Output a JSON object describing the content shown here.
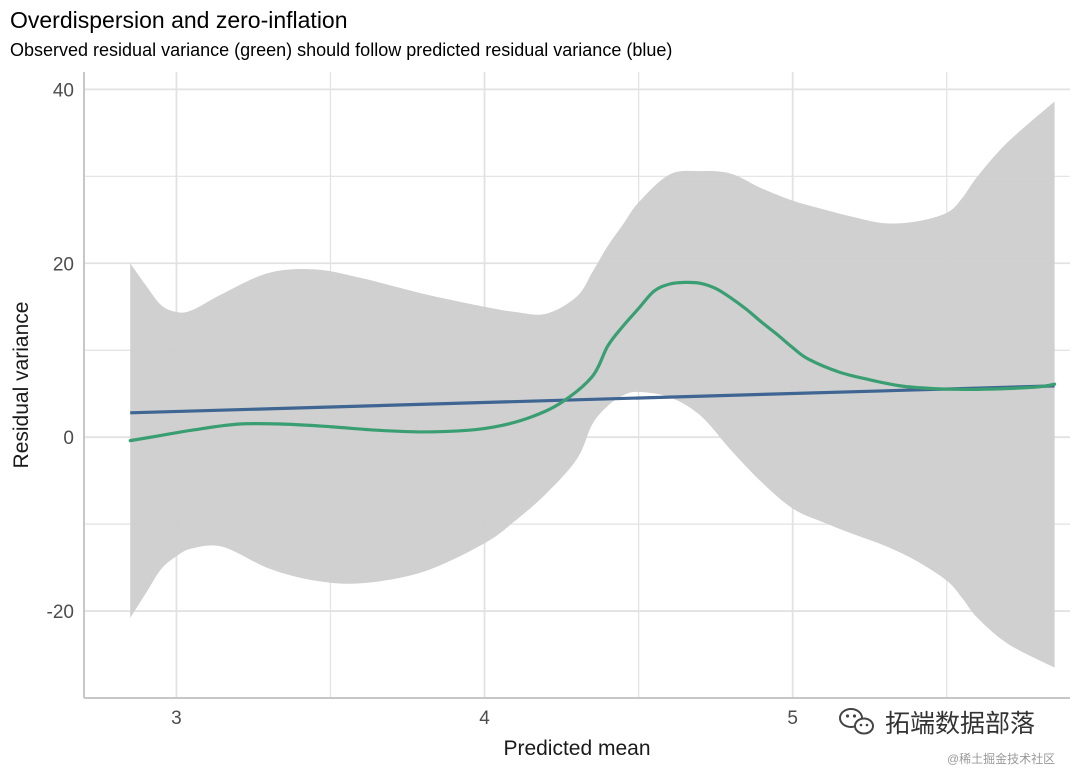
{
  "chart_data": {
    "type": "line",
    "title": "Overdispersion and zero-inflation",
    "subtitle": "Observed residual variance (green) should follow predicted residual variance (blue)",
    "xlabel": "Predicted mean",
    "ylabel": "Residual variance",
    "xlim": [
      2.7,
      5.9
    ],
    "ylim": [
      -30,
      42
    ],
    "xticks": [
      3,
      4,
      5
    ],
    "xtick_labels": [
      "3",
      "4",
      "5"
    ],
    "yticks": [
      -20,
      0,
      20,
      40
    ],
    "ytick_labels": [
      "-20",
      "0",
      "20",
      "40"
    ],
    "x_minor_gridlines": [
      3.5,
      4.5,
      5.5
    ],
    "y_minor_gridlines": [
      -30,
      -10,
      10,
      30
    ],
    "grid": true,
    "colors": {
      "observed": "#3a9e73",
      "predicted": "#3f6592",
      "predicted_overlap": "#1f4e99",
      "band": "#cecece",
      "grid": "#e2e2e2",
      "axis": "#c7c7c7"
    },
    "series": [
      {
        "name": "Observed residual variance",
        "color_name": "green",
        "x": [
          2.85,
          2.95,
          3.05,
          3.2,
          3.35,
          3.5,
          3.65,
          3.8,
          3.95,
          4.05,
          4.15,
          4.25,
          4.35,
          4.4,
          4.45,
          4.5,
          4.55,
          4.6,
          4.65,
          4.7,
          4.75,
          4.8,
          4.85,
          4.9,
          4.95,
          5.0,
          5.05,
          5.15,
          5.25,
          5.35,
          5.45,
          5.55,
          5.6,
          5.7,
          5.8,
          5.85
        ],
        "y": [
          -0.4,
          0.2,
          0.8,
          1.5,
          1.5,
          1.2,
          0.8,
          0.6,
          0.8,
          1.3,
          2.3,
          4.0,
          7.0,
          10.5,
          12.8,
          14.8,
          16.8,
          17.6,
          17.8,
          17.7,
          17.1,
          16.0,
          14.7,
          13.2,
          11.8,
          10.3,
          9.0,
          7.5,
          6.6,
          5.9,
          5.6,
          5.5,
          5.5,
          5.6,
          5.8,
          6.1
        ]
      },
      {
        "name": "Predicted residual variance",
        "color_name": "blue",
        "x": [
          2.85,
          5.85
        ],
        "y": [
          2.8,
          5.9
        ]
      }
    ],
    "confidence_band": {
      "name": "Observed residual variance interval",
      "x": [
        2.85,
        2.9,
        2.95,
        3.0,
        3.05,
        3.15,
        3.3,
        3.45,
        3.6,
        3.8,
        4.0,
        4.1,
        4.2,
        4.3,
        4.35,
        4.4,
        4.45,
        4.5,
        4.6,
        4.7,
        4.8,
        4.9,
        5.0,
        5.1,
        5.2,
        5.3,
        5.4,
        5.5,
        5.55,
        5.6,
        5.7,
        5.85
      ],
      "upper": [
        20.0,
        17.5,
        15.2,
        14.4,
        14.6,
        16.5,
        18.9,
        19.3,
        18.3,
        16.5,
        15.0,
        14.4,
        14.2,
        16.2,
        19.0,
        22.0,
        24.5,
        27.0,
        30.2,
        30.6,
        30.3,
        28.6,
        27.2,
        26.2,
        25.3,
        24.6,
        24.8,
        25.8,
        27.5,
        30.0,
        34.0,
        38.6
      ],
      "lower": [
        -20.8,
        -18.0,
        -15.2,
        -13.7,
        -12.8,
        -12.6,
        -15.1,
        -16.5,
        -16.8,
        -15.5,
        -12.2,
        -9.6,
        -6.5,
        -2.5,
        1.5,
        3.6,
        4.8,
        5.2,
        4.6,
        2.5,
        -1.5,
        -5.2,
        -8.2,
        -9.8,
        -11.2,
        -12.5,
        -14.2,
        -16.5,
        -18.5,
        -20.8,
        -23.8,
        -26.5
      ]
    }
  },
  "watermark": {
    "main": "拓端数据部落",
    "small": "@稀土掘金技术社区",
    "icon": "wechat-icon"
  }
}
